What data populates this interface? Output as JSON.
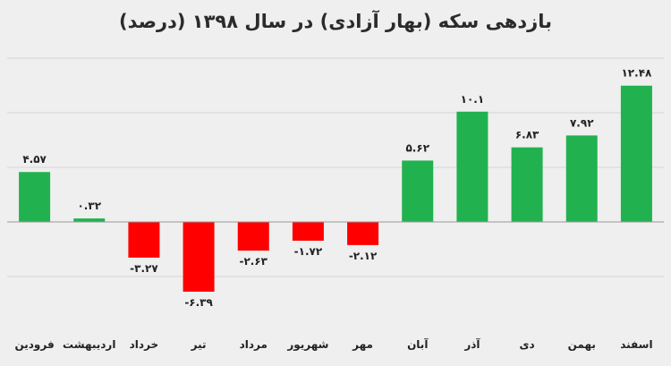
{
  "chart_data": {
    "type": "bar",
    "title": "بازدهی سکه (بهار آزادی) در سال ۱۳۹۸ (درصد)",
    "categories": [
      "فرودین",
      "اردیبهشت",
      "خرداد",
      "تیر",
      "مرداد",
      "شهریور",
      "مهر",
      "آبان",
      "آذر",
      "دی",
      "بهمن",
      "اسفند"
    ],
    "values": [
      4.57,
      0.32,
      -3.27,
      -6.39,
      -2.63,
      -1.72,
      -2.12,
      5.62,
      10.1,
      6.83,
      7.92,
      12.48
    ],
    "value_labels": [
      "۴.۵۷",
      "۰.۳۲",
      "-۳.۲۷",
      "-۶.۳۹",
      "-۲.۶۳",
      "-۱.۷۲",
      "-۲.۱۲",
      "۵.۶۲",
      "۱۰.۱",
      "۶.۸۳",
      "۷.۹۲",
      "۱۲.۴۸"
    ],
    "xlabel": "",
    "ylabel": "",
    "ylim": [
      -8,
      16
    ],
    "grid": true,
    "legend": "none",
    "colors": {
      "positive": "#21b24f",
      "negative": "#ff0000",
      "grid": "#d4d4d4",
      "background": "#efefef"
    }
  }
}
